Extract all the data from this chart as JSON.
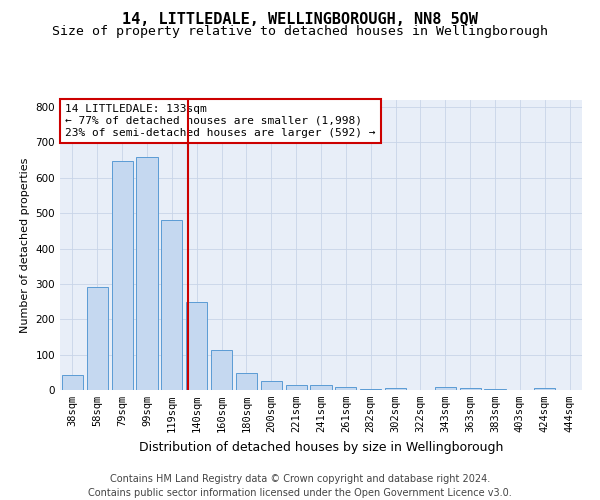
{
  "title": "14, LITTLEDALE, WELLINGBOROUGH, NN8 5QW",
  "subtitle": "Size of property relative to detached houses in Wellingborough",
  "xlabel": "Distribution of detached houses by size in Wellingborough",
  "ylabel": "Number of detached properties",
  "categories": [
    "38sqm",
    "58sqm",
    "79sqm",
    "99sqm",
    "119sqm",
    "140sqm",
    "160sqm",
    "180sqm",
    "200sqm",
    "221sqm",
    "241sqm",
    "261sqm",
    "282sqm",
    "302sqm",
    "322sqm",
    "343sqm",
    "363sqm",
    "383sqm",
    "403sqm",
    "424sqm",
    "444sqm"
  ],
  "values": [
    43,
    291,
    648,
    660,
    480,
    248,
    113,
    48,
    25,
    15,
    13,
    8,
    3,
    6,
    0,
    8,
    5,
    3,
    0,
    5,
    0
  ],
  "bar_color": "#c5d8f0",
  "bar_edge_color": "#5b9bd5",
  "vline_color": "#cc0000",
  "vline_pos": 4.65,
  "annotation_text": "14 LITTLEDALE: 133sqm\n← 77% of detached houses are smaller (1,998)\n23% of semi-detached houses are larger (592) →",
  "annotation_box_color": "#ffffff",
  "annotation_box_edge": "#cc0000",
  "ylim": [
    0,
    820
  ],
  "yticks": [
    0,
    100,
    200,
    300,
    400,
    500,
    600,
    700,
    800
  ],
  "grid_color": "#c8d4e8",
  "bg_color": "#e8eef8",
  "footer": "Contains HM Land Registry data © Crown copyright and database right 2024.\nContains public sector information licensed under the Open Government Licence v3.0.",
  "title_fontsize": 11,
  "subtitle_fontsize": 9.5,
  "xlabel_fontsize": 9,
  "ylabel_fontsize": 8,
  "tick_fontsize": 7.5,
  "annotation_fontsize": 8,
  "footer_fontsize": 7
}
